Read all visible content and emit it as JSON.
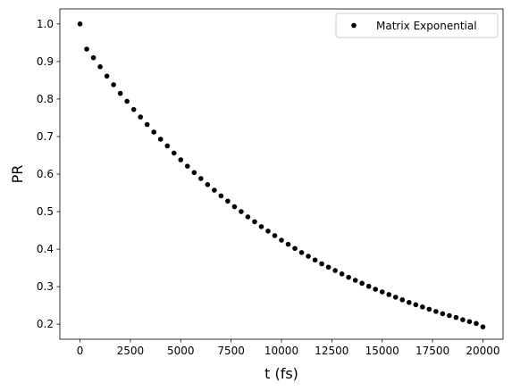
{
  "chart_data": {
    "type": "scatter",
    "title": "",
    "xlabel": "t (fs)",
    "ylabel": "PR",
    "xlim": [
      -1000,
      21000
    ],
    "ylim": [
      0.16,
      1.04
    ],
    "xticks": [
      0,
      2500,
      5000,
      7500,
      10000,
      12500,
      15000,
      17500,
      20000
    ],
    "yticks": [
      0.2,
      0.3,
      0.4,
      0.5,
      0.6,
      0.7,
      0.8,
      0.9,
      1.0
    ],
    "xtick_labels": [
      "0",
      "2500",
      "5000",
      "7500",
      "10000",
      "12500",
      "15000",
      "17500",
      "20000"
    ],
    "ytick_labels": [
      "0.2",
      "0.3",
      "0.4",
      "0.5",
      "0.6",
      "0.7",
      "0.8",
      "0.9",
      "1.0"
    ],
    "grid": false,
    "legend": {
      "position": "top-right"
    },
    "series": [
      {
        "name": "Matrix Exponential",
        "color": "#000000",
        "marker": "circle",
        "x": [
          0,
          333,
          667,
          1000,
          1333,
          1667,
          2000,
          2333,
          2667,
          3000,
          3333,
          3667,
          4000,
          4333,
          4667,
          5000,
          5333,
          5667,
          6000,
          6333,
          6667,
          7000,
          7333,
          7667,
          8000,
          8333,
          8667,
          9000,
          9333,
          9667,
          10000,
          10333,
          10667,
          11000,
          11333,
          11667,
          12000,
          12333,
          12667,
          13000,
          13333,
          13667,
          14000,
          14333,
          14667,
          15000,
          15333,
          15667,
          16000,
          16333,
          16667,
          17000,
          17333,
          17667,
          18000,
          18333,
          18667,
          19000,
          19333,
          19667,
          20000
        ],
        "y": [
          1.0,
          0.933,
          0.91,
          0.886,
          0.861,
          0.838,
          0.815,
          0.794,
          0.772,
          0.752,
          0.732,
          0.712,
          0.693,
          0.675,
          0.656,
          0.638,
          0.621,
          0.604,
          0.588,
          0.572,
          0.557,
          0.542,
          0.528,
          0.513,
          0.5,
          0.486,
          0.473,
          0.46,
          0.448,
          0.436,
          0.424,
          0.413,
          0.402,
          0.391,
          0.381,
          0.371,
          0.361,
          0.352,
          0.343,
          0.334,
          0.325,
          0.317,
          0.309,
          0.301,
          0.293,
          0.286,
          0.279,
          0.272,
          0.265,
          0.258,
          0.252,
          0.246,
          0.24,
          0.234,
          0.228,
          0.223,
          0.218,
          0.212,
          0.207,
          0.202,
          0.193
        ]
      }
    ]
  }
}
